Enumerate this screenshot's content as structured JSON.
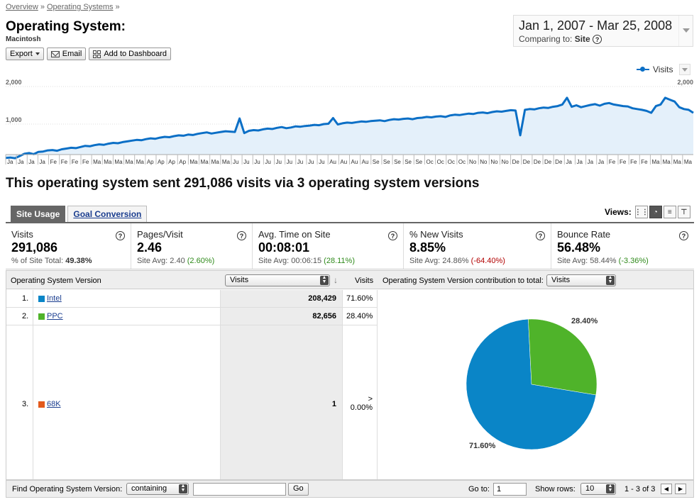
{
  "breadcrumb": {
    "items": [
      "Overview",
      "Operating Systems"
    ],
    "sep": "»"
  },
  "page": {
    "title": "Operating System:",
    "subtitle": "Macintosh"
  },
  "toolbar": {
    "export_label": "Export",
    "email_label": "Email",
    "dashboard_label": "Add to Dashboard"
  },
  "daterange": {
    "range": "Jan 1, 2007 - Mar 25, 2008",
    "comparing_label": "Comparing to:",
    "comparing_value": "Site"
  },
  "graph": {
    "legend_label": "Visits",
    "y_top_label": "2,000",
    "y_mid_label": "1,000",
    "accent": "#0b6fc6",
    "fill": "#e4f0fa"
  },
  "chart_data": {
    "type": "area",
    "series": [
      {
        "name": "Visits",
        "values": [
          100,
          110,
          90,
          150,
          210,
          230,
          200,
          260,
          270,
          300,
          310,
          290,
          330,
          350,
          370,
          360,
          390,
          420,
          410,
          440,
          460,
          450,
          480,
          500,
          490,
          520,
          540,
          560,
          580,
          570,
          600,
          620,
          610,
          640,
          660,
          650,
          680,
          700,
          690,
          720,
          710,
          740,
          760,
          780,
          750,
          770,
          790,
          810,
          800,
          790,
          1150,
          760,
          820,
          840,
          830,
          860,
          880,
          870,
          900,
          920,
          890,
          910,
          940,
          930,
          950,
          960,
          980,
          970,
          1000,
          1010,
          1160,
          990,
          1020,
          1040,
          1030,
          1050,
          1070,
          1060,
          1080,
          1090,
          1100,
          1080,
          1110,
          1130,
          1120,
          1140,
          1150,
          1130,
          1160,
          1170,
          1190,
          1180,
          1200,
          1210,
          1190,
          1230,
          1250,
          1240,
          1260,
          1280,
          1270,
          1300,
          1310,
          1290,
          1320,
          1340,
          1330,
          1350,
          1370,
          1360,
          700,
          1380,
          1400,
          1390,
          1420,
          1440,
          1430,
          1460,
          1480,
          1520,
          1700,
          1460,
          1500,
          1450,
          1480,
          1510,
          1530,
          1490,
          1540,
          1560,
          1520,
          1500,
          1480,
          1470,
          1420,
          1400,
          1380,
          1350,
          1300,
          1480,
          1520,
          1700,
          1650,
          1600,
          1450,
          1400,
          1380,
          1300
        ]
      }
    ],
    "ylim": [
      0,
      2000
    ],
    "y_ticks": [
      "2,000",
      "1,000"
    ],
    "tick_labels": [
      "Ja",
      "Ja",
      "Ja",
      "Ja",
      "Fe",
      "Fe",
      "Fe",
      "Fe",
      "Ma",
      "Ma",
      "Ma",
      "Ma",
      "Ma",
      "Ap",
      "Ap",
      "Ap",
      "Ap",
      "Ma",
      "Ma",
      "Ma",
      "Ma",
      "Ju",
      "Ju",
      "Ju",
      "Ju",
      "Ju",
      "Ju",
      "Ju",
      "Ju",
      "Ju",
      "Au",
      "Au",
      "Au",
      "Au",
      "Se",
      "Se",
      "Se",
      "Se",
      "Se",
      "Oc",
      "Oc",
      "Oc",
      "Oc",
      "No",
      "No",
      "No",
      "No",
      "De",
      "De",
      "De",
      "De",
      "De",
      "Ja",
      "Ja",
      "Ja",
      "Ja",
      "Fe",
      "Fe",
      "Fe",
      "Fe",
      "Ma",
      "Ma",
      "Ma",
      "Ma"
    ],
    "legend": "top-right",
    "grid": true
  },
  "headline": "This operating system sent 291,086 visits via 3 operating system versions",
  "tabs": [
    {
      "label": "Site Usage"
    },
    {
      "label": "Goal Conversion"
    }
  ],
  "views": {
    "label": "Views:",
    "buttons": [
      "table-view",
      "pie-view",
      "performance-view",
      "comparison-view"
    ]
  },
  "metrics": [
    {
      "name": "Visits",
      "value": "291,086",
      "sub_label": "% of Site Total:",
      "sub_value": "49.38%",
      "delta": "",
      "delta_color": ""
    },
    {
      "name": "Pages/Visit",
      "value": "2.46",
      "sub_label": "Site Avg:",
      "sub_value": "2.40",
      "delta": "(2.60%)",
      "delta_color": "green"
    },
    {
      "name": "Avg. Time on Site",
      "value": "00:08:01",
      "sub_label": "Site Avg:",
      "sub_value": "00:06:15",
      "delta": "(28.11%)",
      "delta_color": "green"
    },
    {
      "name": "% New Visits",
      "value": "8.85%",
      "sub_label": "Site Avg:",
      "sub_value": "24.86%",
      "delta": "(-64.40%)",
      "delta_color": "red"
    },
    {
      "name": "Bounce Rate",
      "value": "56.48%",
      "sub_label": "Site Avg:",
      "sub_value": "58.44%",
      "delta": "(-3.36%)",
      "delta_color": "green"
    }
  ],
  "table": {
    "dim_header": "Operating System Version",
    "metric_select": "Visits",
    "pct_header": "Visits",
    "contrib_header": "Operating System Version contribution to total:",
    "contrib_select": "Visits",
    "rows": [
      {
        "rank": "1.",
        "name": "Intel",
        "visits": "208,429",
        "pct": "71.60%",
        "color": "#0a85c7"
      },
      {
        "rank": "2.",
        "name": "PPC",
        "visits": "82,656",
        "pct": "28.40%",
        "color": "#4fb32a"
      },
      {
        "rank": "3.",
        "name": "68K",
        "visits": "1",
        "pct": "0.00%",
        "pct_prefix": ">",
        "color": "#e35a1c"
      }
    ]
  },
  "pie_chart": {
    "type": "pie",
    "slices": [
      {
        "label": "Intel",
        "value": 71.6,
        "text": "71.60%",
        "color": "#0a85c7"
      },
      {
        "label": "PPC",
        "value": 28.4,
        "text": "28.40%",
        "color": "#4fb32a"
      }
    ]
  },
  "footer": {
    "find_label": "Find Operating System Version:",
    "match_select": "containing",
    "find_value": "",
    "go_label": "Go",
    "goto_label": "Go to:",
    "goto_value": "1",
    "showrows_label": "Show rows:",
    "showrows_value": "10",
    "range_text": "1 - 3 of 3"
  }
}
